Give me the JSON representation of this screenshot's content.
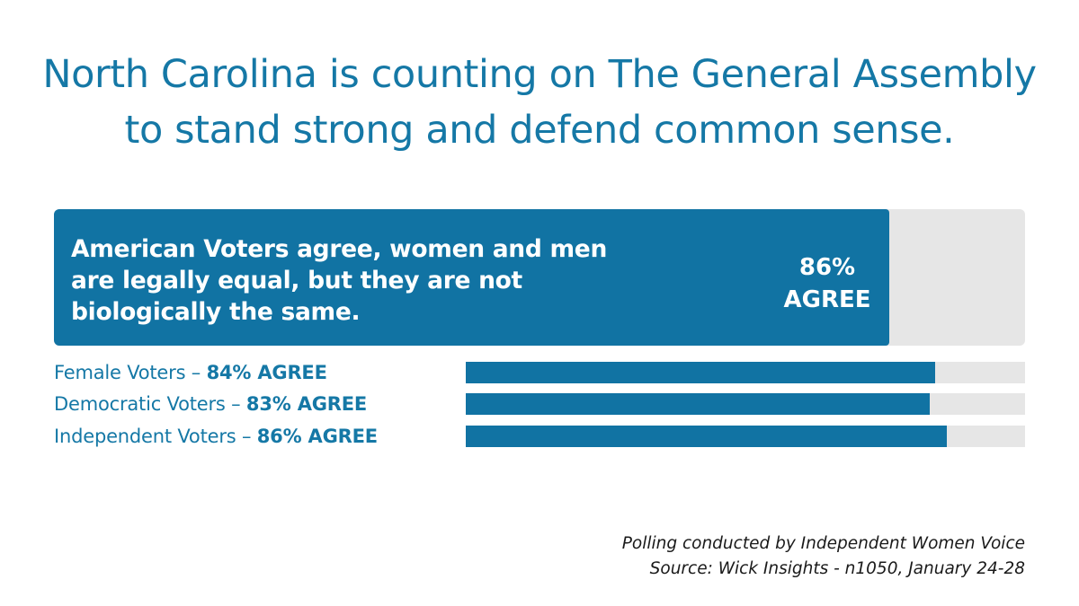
{
  "headline": {
    "line1": "North Carolina is counting on The General Assembly",
    "line2": "to stand strong and defend common sense."
  },
  "chart_data": {
    "type": "bar",
    "orientation": "horizontal",
    "xlim": [
      0,
      100
    ],
    "unit": "%",
    "headline_bar": {
      "label": "American Voters agree, women and men are legally equal, but they are not biologically the same.",
      "value": 86,
      "value_text": "86%",
      "value_suffix": "AGREE"
    },
    "categories": [
      "Female Voters",
      "Democratic Voters",
      "Independent Voters"
    ],
    "values": [
      84,
      83,
      86
    ],
    "value_texts": [
      "84% AGREE",
      "83% AGREE",
      "86% AGREE"
    ],
    "separator": "–"
  },
  "footnote": {
    "line1": "Polling conducted by Independent Women Voice",
    "line2": "Source: Wick Insights - n1050, January 24-28"
  },
  "colors": {
    "accent": "#1173a3",
    "title": "#1578a6",
    "track": "#e6e6e6"
  }
}
